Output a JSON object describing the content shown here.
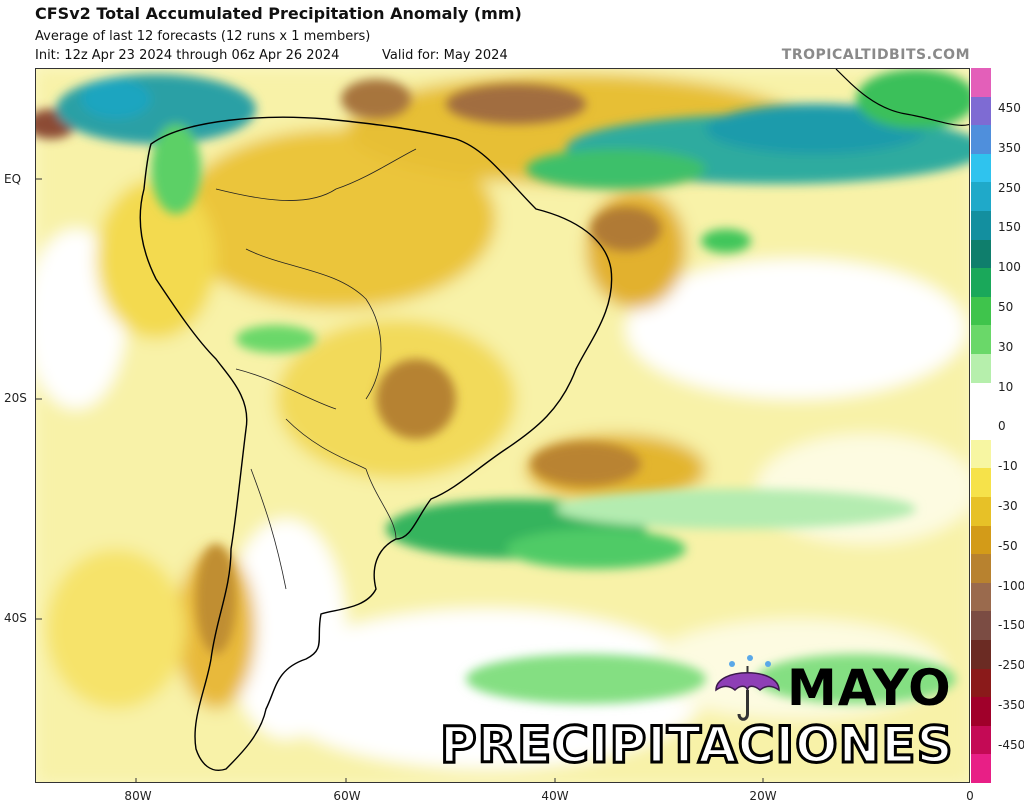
{
  "header": {
    "title": "CFSv2 Total Accumulated Precipitation Anomaly (mm)",
    "subtitle": "Average of last 12 forecasts (12 runs x 1 members)",
    "init": "Init: 12z Apr 23 2024 through 06z Apr 26 2024",
    "valid": "Valid for: May 2024",
    "brand": "TROPICALTIDBITS.COM"
  },
  "axes": {
    "lat_labels": [
      "EQ",
      "20S",
      "40S"
    ],
    "lon_labels": [
      "80W",
      "60W",
      "40W",
      "20W",
      "0"
    ]
  },
  "colorbar": {
    "ticks": [
      "450",
      "350",
      "250",
      "150",
      "100",
      "50",
      "30",
      "10",
      "0",
      "-10",
      "-30",
      "-50",
      "-100",
      "-150",
      "-250",
      "-350",
      "-450"
    ],
    "colors": [
      "#e35fb9",
      "#7e6bd3",
      "#4f8fdc",
      "#2fc3ee",
      "#1fa9c9",
      "#138f9f",
      "#0f7e6c",
      "#1aa85a",
      "#3fc44c",
      "#6ad869",
      "#b6efac",
      "#ffffff",
      "#ffffff",
      "#f7f6a2",
      "#f6e24a",
      "#e7c127",
      "#d39b18",
      "#b8822f",
      "#9a6a4d",
      "#7b4c43",
      "#6b2b23",
      "#8a1a1a",
      "#a0002a",
      "#c40a55",
      "#e81f86"
    ]
  },
  "overlay": {
    "word1": "MAYO",
    "word2": "PRECIPITACIONES",
    "umbrella_icon": "umbrella-with-rain-icon"
  }
}
